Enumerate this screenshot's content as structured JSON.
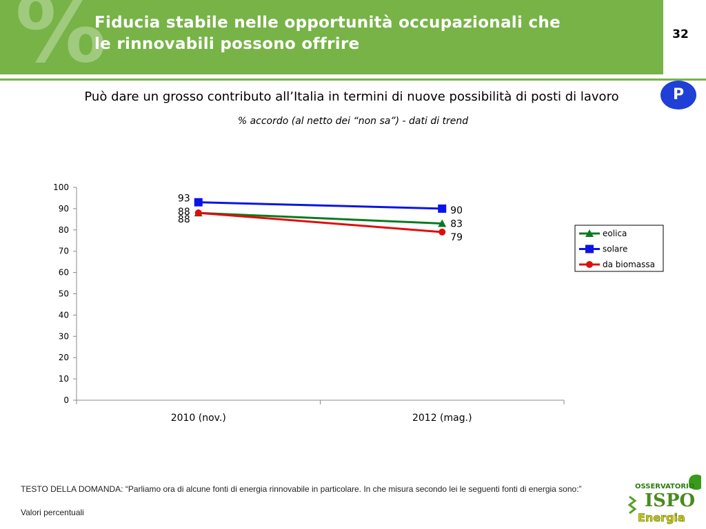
{
  "header": {
    "title_line1": "Fiducia  stabile  nelle  opportunità  occupazionali  che",
    "title_line2": "le rinnovabili possono offrire",
    "page_number": "32",
    "badge": "P",
    "accent_color": "#77b347"
  },
  "question": "Può dare un grosso contributo all’Italia in termini di nuove possibilità di posti di lavoro",
  "subtitle": "% accordo  (al netto dei “non sa”) - dati di trend",
  "chart_data": {
    "type": "line",
    "categories": [
      "2010 (nov.)",
      "2012 (mag.)"
    ],
    "ylim": [
      0,
      100
    ],
    "yticks": [
      0,
      10,
      20,
      30,
      40,
      50,
      60,
      70,
      80,
      90,
      100
    ],
    "grid": false,
    "legend_position": "right",
    "series": [
      {
        "name": "eolica",
        "values": [
          88,
          83
        ],
        "color": "#0a7a1f",
        "marker": "triangle"
      },
      {
        "name": "solare",
        "values": [
          93,
          90
        ],
        "color": "#0a14e6",
        "marker": "square"
      },
      {
        "name": "da biomassa",
        "values": [
          88,
          79
        ],
        "color": "#e00d0d",
        "marker": "circle"
      }
    ]
  },
  "footer": {
    "question_text": "TESTO DELLA DOMANDA: “Parliamo ora di alcune fonti di energia rinnovabile in particolare. In che misura secondo lei le seguenti fonti di energia sono:”",
    "note": "Valori percentuali"
  },
  "logo": {
    "top": "OSSERVATORIO",
    "mid": "ISPO",
    "bottom": "Energia"
  }
}
